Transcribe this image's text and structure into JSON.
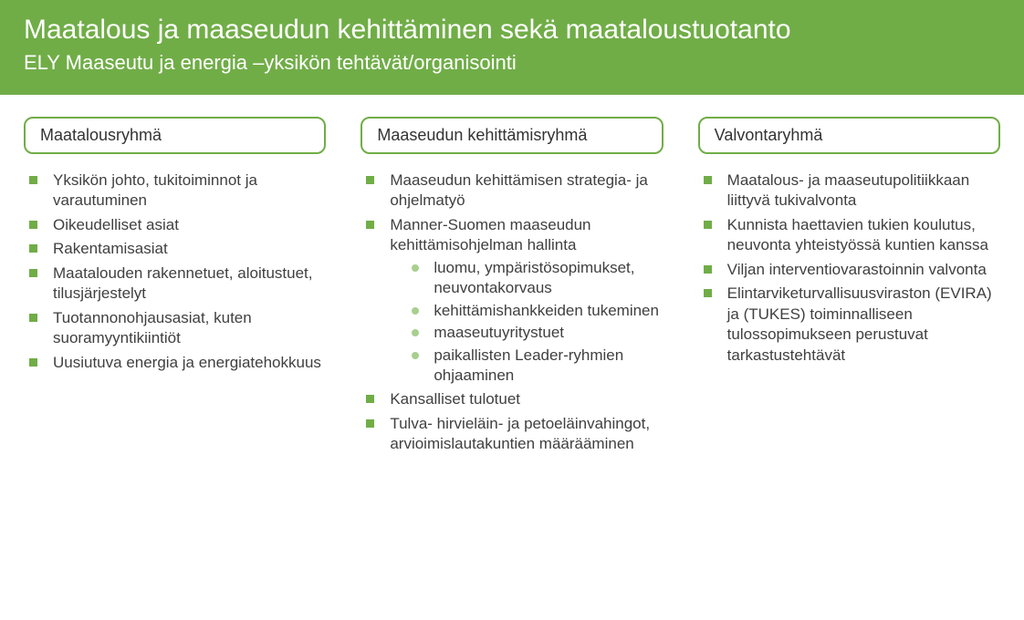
{
  "colors": {
    "header_bg": "#70ad47",
    "header_text": "#ffffff",
    "border": "#70ad47",
    "bullet_square": "#70ad47",
    "bullet_circle": "#a9cf8f",
    "body_text": "#404040",
    "page_bg": "#ffffff"
  },
  "typography": {
    "font_family": "Segoe UI",
    "title_size_pt": 23,
    "subtitle_size_pt": 17,
    "group_title_size_pt": 14,
    "body_size_pt": 13
  },
  "header": {
    "title": "Maatalous ja maaseudun kehittäminen sekä maataloustuotanto",
    "subtitle": "ELY Maaseutu ja energia –yksikön tehtävät/organisointi"
  },
  "columns": [
    {
      "title": "Maatalousryhmä",
      "items": [
        {
          "text": "Yksikön johto, tukitoiminnot ja varautuminen"
        },
        {
          "text": "Oikeudelliset asiat"
        },
        {
          "text": "Rakentamisasiat"
        },
        {
          "text": "Maatalouden rakennetuet, aloitustuet, tilusjärjestelyt"
        },
        {
          "text": "Tuotannonohjausasiat, kuten suoramyyntikiintiöt"
        },
        {
          "text": "Uusiutuva energia ja energiatehokkuus"
        }
      ]
    },
    {
      "title": "Maaseudun kehittämisryhmä",
      "items": [
        {
          "text": "Maaseudun kehittämisen strategia- ja ohjelmatyö"
        },
        {
          "text": "Manner-Suomen maaseudun kehittämisohjelman hallinta",
          "sub": [
            "luomu, ympäristösopimukset, neuvontakorvaus",
            "kehittämishankkeiden tukeminen",
            "maaseutuyritystuet",
            "paikallisten Leader-ryhmien ohjaaminen"
          ]
        },
        {
          "text": "Kansalliset tulotuet"
        },
        {
          "text": "Tulva- hirvieläin- ja petoeläinvahingot, arvioimislautakuntien määrääminen"
        }
      ]
    },
    {
      "title": "Valvontaryhmä",
      "items": [
        {
          "text": "Maatalous- ja maaseutupolitiikkaan liittyvä tukivalvonta"
        },
        {
          "text": "Kunnista haettavien tukien koulutus, neuvonta yhteistyössä kuntien kanssa"
        },
        {
          "text": "Viljan interventiovarastoinnin valvonta"
        },
        {
          "text": "Elintarviketurvallisuusviraston (EVIRA) ja (TUKES) toiminnalliseen tulossopimukseen perustuvat tarkastustehtävät"
        }
      ]
    }
  ]
}
